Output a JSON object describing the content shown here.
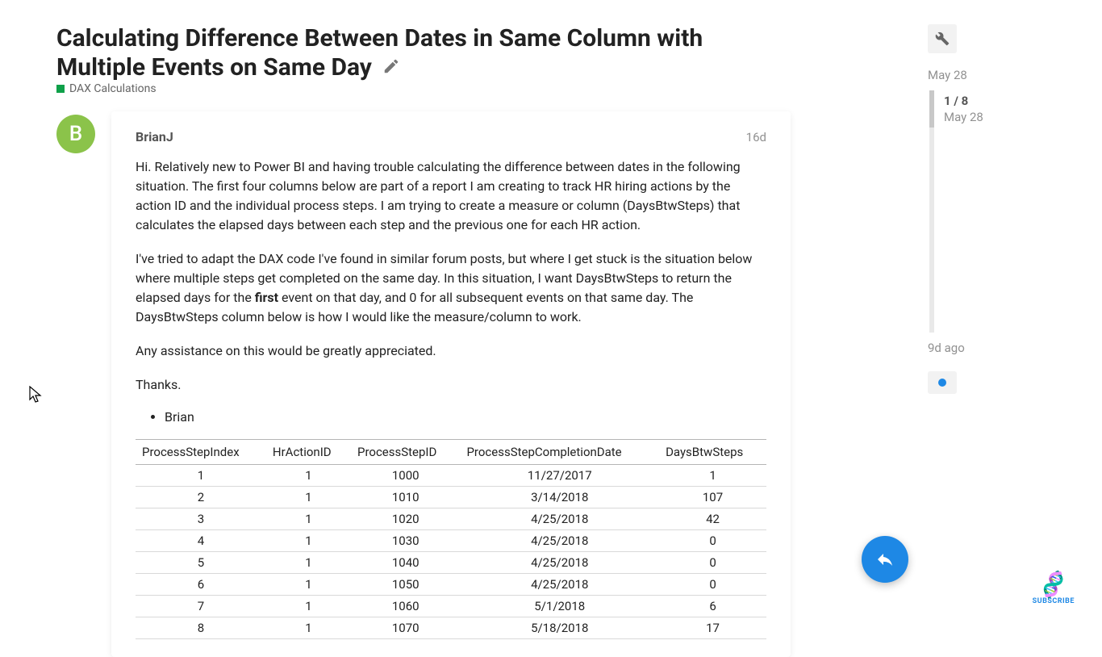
{
  "topic": {
    "title": "Calculating Difference Between Dates in Same Column with Multiple Events on Same Day",
    "category": "DAX Calculations",
    "category_color": "#0ea049"
  },
  "post": {
    "author": "BrianJ",
    "avatar_letter": "B",
    "avatar_bg": "#8bc34a",
    "age": "16d",
    "para1": "Hi. Relatively new to Power BI and having trouble calculating the difference between dates in the following situation. The first four columns below are part of a report I am creating to track HR hiring actions by the action ID and the individual process steps. I am trying to create a measure or column (DaysBtwSteps) that calculates the elapsed days between each step and the previous one for each HR action.",
    "para2a": "I've tried to adapt the DAX code I've found in similar forum posts, but where I get stuck is the situation below where multiple steps get completed on the same day. In this situation, I want DaysBtwSteps to return the elapsed days for the ",
    "para2_bold": "first",
    "para2b": " event on that day, and 0 for all subsequent events on that same day. The DaysBtwSteps column below is how I would like the measure/column to work.",
    "para3": "Any assistance on this would be greatly appreciated.",
    "para4": "Thanks.",
    "bullet": "Brian"
  },
  "table": {
    "columns": [
      "ProcessStepIndex",
      "HrActionID",
      "ProcessStepID",
      "ProcessStepCompletionDate",
      "DaysBtwSteps"
    ],
    "rows": [
      [
        "1",
        "1",
        "1000",
        "11/27/2017",
        "1"
      ],
      [
        "2",
        "1",
        "1010",
        "3/14/2018",
        "107"
      ],
      [
        "3",
        "1",
        "1020",
        "4/25/2018",
        "42"
      ],
      [
        "4",
        "1",
        "1030",
        "4/25/2018",
        "0"
      ],
      [
        "5",
        "1",
        "1040",
        "4/25/2018",
        "0"
      ],
      [
        "6",
        "1",
        "1050",
        "4/25/2018",
        "0"
      ],
      [
        "7",
        "1",
        "1060",
        "5/1/2018",
        "6"
      ],
      [
        "8",
        "1",
        "1070",
        "5/18/2018",
        "17"
      ]
    ]
  },
  "timeline": {
    "top_date": "May 28",
    "counter": "1 / 8",
    "current_date": "May 28",
    "bottom_label": "9d ago"
  },
  "subscribe": {
    "label": "SUBSCRIBE"
  },
  "colors": {
    "accent": "#1E88E5",
    "text": "#222222",
    "muted": "#919191"
  }
}
